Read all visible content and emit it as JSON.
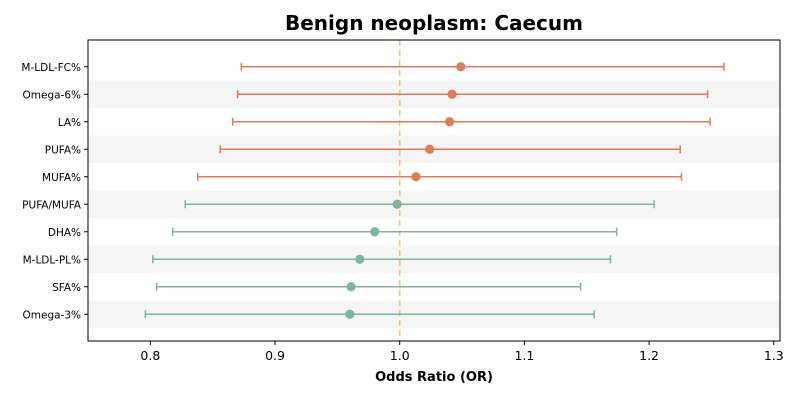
{
  "chart_data": {
    "type": "scatter",
    "title": "Benign neoplasm: Caecum",
    "xlabel": "Odds Ratio (OR)",
    "ylabel": "",
    "xlim": [
      0.75,
      1.305
    ],
    "xticks": [
      0.8,
      0.9,
      1.0,
      1.1,
      1.2,
      1.3
    ],
    "xtick_labels": [
      "0.8",
      "0.9",
      "1.0",
      "1.1",
      "1.2",
      "1.3"
    ],
    "reference_line": 1.0,
    "colors": {
      "positive": "#e07b5a",
      "negative": "#7fb59b",
      "reference": "#f3c27f",
      "stripe": "#f5f5f5"
    },
    "points": [
      {
        "label": "M-LDL-FC%",
        "or": 1.049,
        "low": 0.873,
        "high": 1.26,
        "group": "positive"
      },
      {
        "label": "Omega-6%",
        "or": 1.042,
        "low": 0.87,
        "high": 1.247,
        "group": "positive"
      },
      {
        "label": "LA%",
        "or": 1.04,
        "low": 0.866,
        "high": 1.249,
        "group": "positive"
      },
      {
        "label": "PUFA%",
        "or": 1.024,
        "low": 0.856,
        "high": 1.225,
        "group": "positive"
      },
      {
        "label": "MUFA%",
        "or": 1.013,
        "low": 0.838,
        "high": 1.226,
        "group": "positive"
      },
      {
        "label": "PUFA/MUFA",
        "or": 0.998,
        "low": 0.828,
        "high": 1.204,
        "group": "negative"
      },
      {
        "label": "DHA%",
        "or": 0.98,
        "low": 0.818,
        "high": 1.174,
        "group": "negative"
      },
      {
        "label": "M-LDL-PL%",
        "or": 0.968,
        "low": 0.802,
        "high": 1.169,
        "group": "negative"
      },
      {
        "label": "SFA%",
        "or": 0.961,
        "low": 0.805,
        "high": 1.145,
        "group": "negative"
      },
      {
        "label": "Omega-3%",
        "or": 0.96,
        "low": 0.796,
        "high": 1.156,
        "group": "negative"
      }
    ]
  }
}
